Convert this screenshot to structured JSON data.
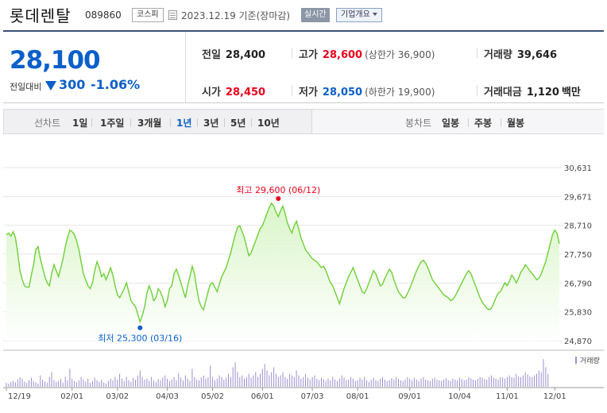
{
  "header": {
    "stock_name": "롯데렌탈",
    "stock_code": "089860",
    "market": "코스피",
    "date": "2023.12.19 기준(장마감)",
    "realtime": "실시간",
    "company_info": "기업개요"
  },
  "summary": {
    "current_price": "28,100",
    "prev_label": "전일대비",
    "change": "300",
    "change_pct": "-1.06%",
    "prev_close_label": "전일",
    "prev_close": "28,400",
    "high_label": "고가",
    "high": "28,600",
    "upper_limit": "(상한가 36,900)",
    "volume_label": "거래량",
    "volume": "39,646",
    "open_label": "시가",
    "open": "28,450",
    "low_label": "저가",
    "low": "28,050",
    "lower_limit": "(하한가 19,900)",
    "amount_label": "거래대금",
    "amount": "1,120",
    "amount_unit": "백만"
  },
  "periods": {
    "line_label": "선차트",
    "items": [
      "1일",
      "1주일",
      "3개월",
      "1년",
      "3년",
      "5년",
      "10년"
    ],
    "active_index": 3,
    "candle_label": "봉차트",
    "candle_items": [
      "일봉",
      "주봉",
      "월봉"
    ]
  },
  "colors": {
    "line": "#6fcf38",
    "area_top": "#d9f5c8",
    "area_bottom": "#ffffff",
    "high_marker": "#e8001d",
    "low_marker": "#0b5fc9",
    "volume": "#9c8fcf"
  },
  "chart_data": {
    "type": "area",
    "ylim": [
      24870,
      30631
    ],
    "y_ticks": [
      "30,631",
      "29,671",
      "28,710",
      "27,750",
      "26,790",
      "25,830",
      "24,870"
    ],
    "x_ticks": [
      "12/19",
      "02/01",
      "03/02",
      "04/03",
      "05/02",
      "06/01",
      "07/03",
      "08/01",
      "09/01",
      "10/04",
      "11/01",
      "12/01"
    ],
    "x_tick_index": [
      0,
      29,
      49,
      71,
      91,
      113,
      135,
      155,
      178,
      200,
      221,
      242
    ],
    "high_label": "최고 29,600 (06/12)",
    "high_value": 29600,
    "high_index": 120,
    "low_label": "최저 25,300 (03/16)",
    "low_value": 25300,
    "low_index": 59,
    "volume_legend": "거래량",
    "prices": [
      28400,
      28450,
      28350,
      28500,
      28300,
      27800,
      27200,
      26900,
      26700,
      26650,
      26650,
      27050,
      27400,
      27900,
      28000,
      27600,
      27300,
      27000,
      26800,
      26700,
      27100,
      27400,
      27200,
      27000,
      27300,
      27600,
      28000,
      28300,
      28550,
      28500,
      28400,
      28200,
      27900,
      27500,
      27100,
      26900,
      26700,
      26600,
      26800,
      27200,
      27500,
      27300,
      27000,
      27100,
      26900,
      27100,
      27300,
      27050,
      26700,
      26400,
      26300,
      26450,
      26600,
      26800,
      26500,
      26200,
      26100,
      26000,
      25750,
      25500,
      25700,
      26000,
      26450,
      26700,
      26500,
      26200,
      26300,
      26600,
      26500,
      26300,
      26000,
      26200,
      26600,
      26700,
      27100,
      27250,
      27050,
      26800,
      26550,
      26300,
      26700,
      27000,
      27350,
      27100,
      26600,
      26200,
      26000,
      25900,
      26200,
      26500,
      26750,
      26800,
      26650,
      26500,
      26750,
      27000,
      27150,
      27300,
      27550,
      27800,
      28100,
      28400,
      28650,
      28700,
      28500,
      28300,
      28000,
      27700,
      27800,
      28000,
      28200,
      28400,
      28600,
      28700,
      28900,
      29100,
      29300,
      29450,
      29350,
      29150,
      29000,
      29200,
      29350,
      29100,
      28800,
      28600,
      28450,
      28700,
      28850,
      28600,
      28300,
      28100,
      27900,
      27800,
      27700,
      27600,
      27550,
      27500,
      27400,
      27300,
      27350,
      27200,
      27000,
      26800,
      26700,
      26500,
      26300,
      26100,
      26350,
      26600,
      26800,
      27000,
      27150,
      27300,
      27100,
      26900,
      26700,
      26500,
      26450,
      26600,
      26800,
      27000,
      27200,
      27100,
      26900,
      26700,
      26750,
      26950,
      27100,
      27250,
      27150,
      26900,
      26700,
      26500,
      26400,
      26300,
      26300,
      26450,
      26600,
      26800,
      27000,
      27200,
      27350,
      27500,
      27550,
      27450,
      27300,
      27100,
      26900,
      26800,
      26700,
      26600,
      26500,
      26400,
      26350,
      26300,
      26200,
      26250,
      26350,
      26500,
      26650,
      26800,
      26950,
      27100,
      27200,
      27100,
      26900,
      26700,
      26500,
      26300,
      26150,
      26050,
      25950,
      25900,
      25950,
      26100,
      26300,
      26450,
      26500,
      26650,
      26800,
      26700,
      26850,
      27050,
      26950,
      26800,
      26950,
      27150,
      27250,
      27400,
      27300,
      27200,
      27100,
      27000,
      26900,
      26950,
      27100,
      27300,
      27500,
      27800,
      28100,
      28400,
      28550,
      28450,
      28100
    ],
    "volumes": [
      0.12,
      0.1,
      0.15,
      0.18,
      0.14,
      0.22,
      0.3,
      0.25,
      0.16,
      0.12,
      0.2,
      0.28,
      0.18,
      0.14,
      0.1,
      0.35,
      0.22,
      0.16,
      0.12,
      0.3,
      0.45,
      0.2,
      0.15,
      0.18,
      0.24,
      0.12,
      0.3,
      0.2,
      0.55,
      0.25,
      0.18,
      0.14,
      0.2,
      0.3,
      0.22,
      0.16,
      0.25,
      0.12,
      0.18,
      0.28,
      0.2,
      0.15,
      0.22,
      0.14,
      0.1,
      0.18,
      0.25,
      0.2,
      0.3,
      0.22,
      0.4,
      0.25,
      0.18,
      0.3,
      0.2,
      0.15,
      0.28,
      0.22,
      0.35,
      0.5,
      0.3,
      0.22,
      0.25,
      0.18,
      0.3,
      0.2,
      0.15,
      0.24,
      0.2,
      0.28,
      0.35,
      0.25,
      0.18,
      0.22,
      0.3,
      0.2,
      0.42,
      0.28,
      0.2,
      0.35,
      0.25,
      0.18,
      0.55,
      0.3,
      0.22,
      0.2,
      0.28,
      0.35,
      0.25,
      0.3,
      0.65,
      0.3,
      0.2,
      0.25,
      0.35,
      0.3,
      0.22,
      0.28,
      0.4,
      0.3,
      0.6,
      0.75,
      0.45,
      0.3,
      0.35,
      0.25,
      0.3,
      0.4,
      0.28,
      0.35,
      0.45,
      0.3,
      0.4,
      0.55,
      0.7,
      0.5,
      0.35,
      0.45,
      0.6,
      0.4,
      0.3,
      0.35,
      0.45,
      0.3,
      0.25,
      0.4,
      0.35,
      0.3,
      0.5,
      0.35,
      0.25,
      0.3,
      0.4,
      0.28,
      0.22,
      0.3,
      0.35,
      0.25,
      0.2,
      0.28,
      0.22,
      0.18,
      0.25,
      0.2,
      0.3,
      0.22,
      0.18,
      0.25,
      0.35,
      0.28,
      0.2,
      0.22,
      0.3,
      0.25,
      0.18,
      0.2,
      0.28,
      0.22,
      0.3,
      0.2,
      0.15,
      0.22,
      0.28,
      0.2,
      0.18,
      0.25,
      0.3,
      0.22,
      0.18,
      0.2,
      0.26,
      0.22,
      0.3,
      0.25,
      0.2,
      0.18,
      0.22,
      0.3,
      0.25,
      0.2,
      0.28,
      0.22,
      0.18,
      0.25,
      0.3,
      0.22,
      0.2,
      0.18,
      0.25,
      0.28,
      0.22,
      0.2,
      0.18,
      0.22,
      0.26,
      0.2,
      0.18,
      0.25,
      0.22,
      0.2,
      0.28,
      0.24,
      0.2,
      0.22,
      0.3,
      0.26,
      0.22,
      0.2,
      0.25,
      0.3,
      0.28,
      0.24,
      0.22,
      0.3,
      0.35,
      0.28,
      0.25,
      0.22,
      0.3,
      0.28,
      0.25,
      0.3,
      0.35,
      0.3,
      0.28,
      0.4,
      0.32,
      0.3,
      0.35,
      0.45,
      0.38,
      0.32,
      0.3,
      0.35,
      0.4,
      0.5,
      0.45,
      0.85,
      0.6,
      0.4
    ]
  }
}
